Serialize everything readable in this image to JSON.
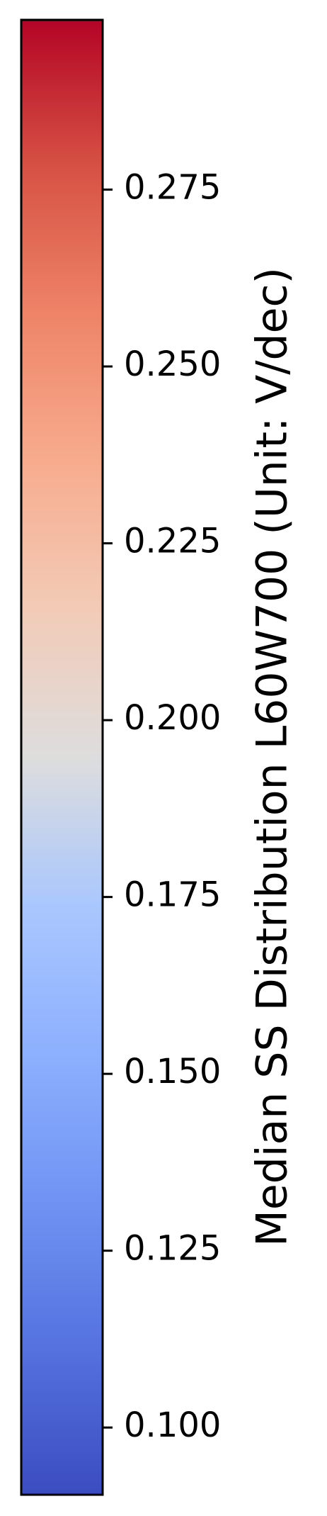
{
  "chart_data": {
    "type": "colorbar",
    "orientation": "vertical",
    "colormap": "coolwarm",
    "vmin": 0.0905,
    "vmax": 0.299,
    "ticks": [
      0.1,
      0.125,
      0.15,
      0.175,
      0.2,
      0.225,
      0.25,
      0.275
    ],
    "tick_labels": [
      "0.100",
      "0.125",
      "0.150",
      "0.175",
      "0.200",
      "0.225",
      "0.250",
      "0.275"
    ],
    "label": "Median SS Distribution L60W700 (Unit: V/dec)",
    "colors": {
      "low": "#3b4cc0",
      "mid": "#dddddd",
      "high": "#b40426",
      "frame": "#000000",
      "text": "#000000"
    }
  }
}
